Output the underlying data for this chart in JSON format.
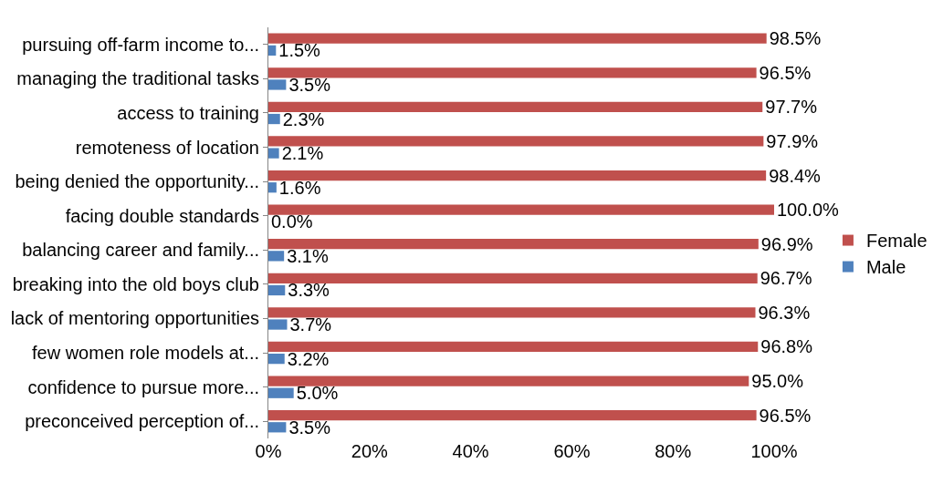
{
  "chart_data": {
    "type": "bar",
    "orientation": "horizontal",
    "categories": [
      "pursuing off-farm income to...",
      "managing the traditional tasks",
      "access to training",
      "remoteness of location",
      "being denied the opportunity...",
      "facing double standards",
      "balancing career and family...",
      "breaking into the old boys club",
      "lack of mentoring opportunities",
      "few women role models at...",
      "confidence to pursue more...",
      "preconceived perception of..."
    ],
    "series": [
      {
        "name": "Female",
        "color": "#c0504d",
        "values": [
          98.5,
          96.5,
          97.7,
          97.9,
          98.4,
          100.0,
          96.9,
          96.7,
          96.3,
          96.8,
          95.0,
          96.5
        ],
        "value_labels": [
          "98.5%",
          "96.5%",
          "97.7%",
          "97.9%",
          "98.4%",
          "100.0%",
          "96.9%",
          "96.7%",
          "96.3%",
          "96.8%",
          "95.0%",
          "96.5%"
        ]
      },
      {
        "name": "Male",
        "color": "#4f81bd",
        "values": [
          1.5,
          3.5,
          2.3,
          2.1,
          1.6,
          0.0,
          3.1,
          3.3,
          3.7,
          3.2,
          5.0,
          3.5
        ],
        "value_labels": [
          "1.5%",
          "3.5%",
          "2.3%",
          "2.1%",
          "1.6%",
          "0.0%",
          "3.1%",
          "3.3%",
          "3.7%",
          "3.2%",
          "5.0%",
          "3.5%"
        ]
      }
    ],
    "xlim": [
      0,
      100
    ],
    "xticks": [
      {
        "value": 0,
        "label": "0%"
      },
      {
        "value": 20,
        "label": "20%"
      },
      {
        "value": 40,
        "label": "40%"
      },
      {
        "value": 60,
        "label": "60%"
      },
      {
        "value": 80,
        "label": "80%"
      },
      {
        "value": 100,
        "label": "100%"
      }
    ],
    "legend": "right"
  }
}
